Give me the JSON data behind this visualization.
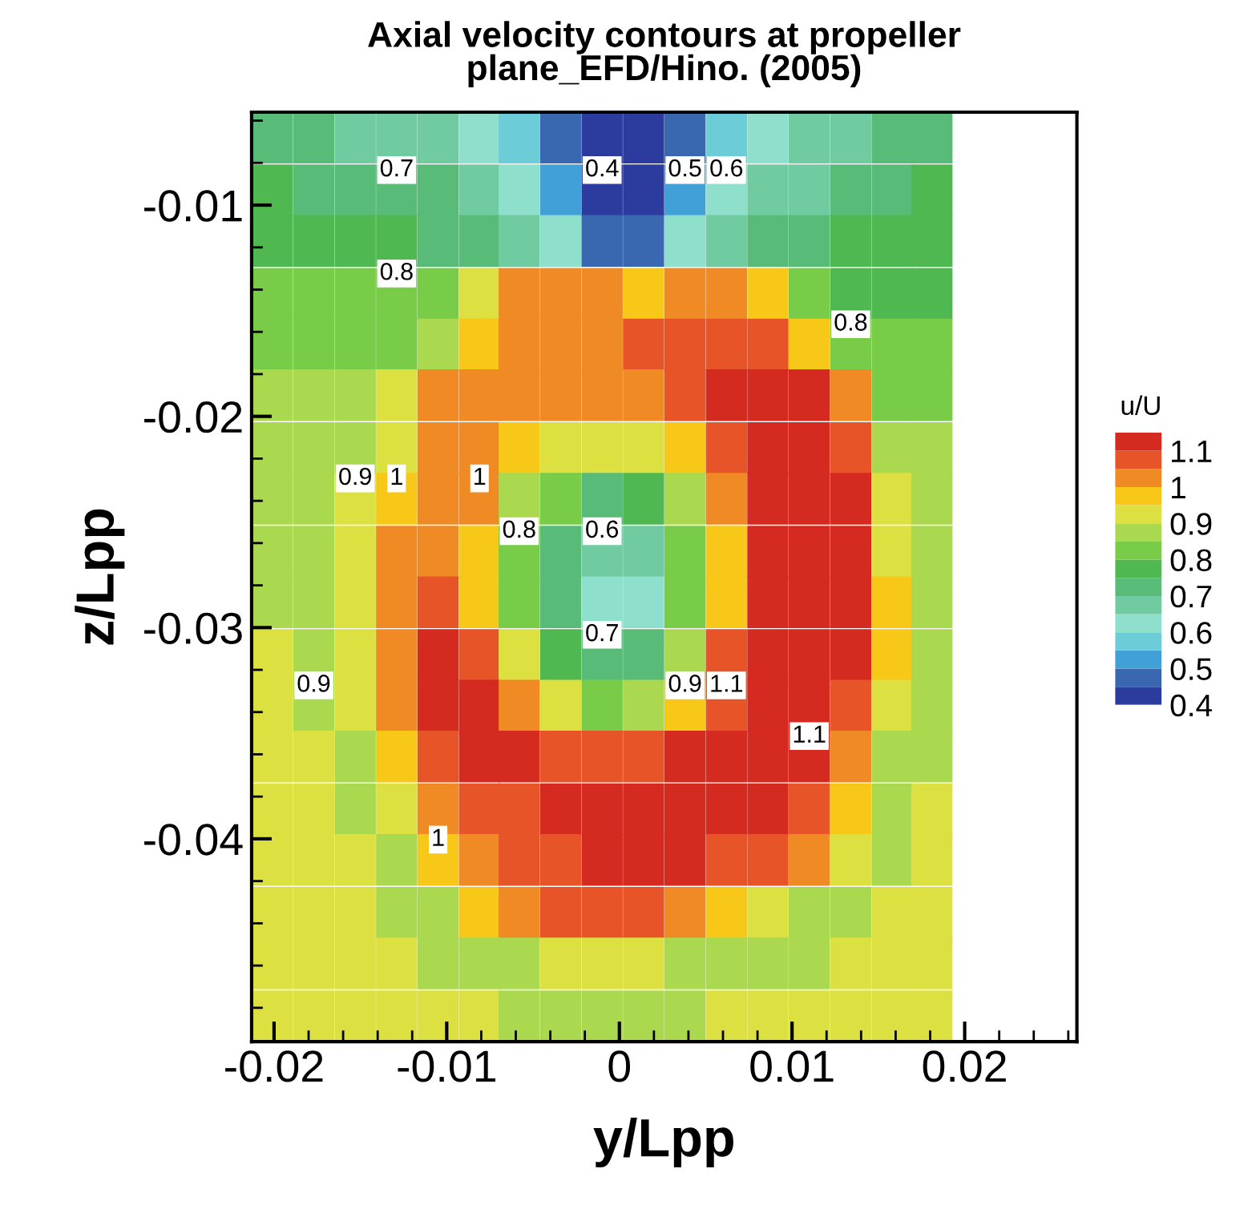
{
  "chart_data": {
    "type": "scatter",
    "title": "Axial velocity contours at propeller\nplane_EFD/Hino. (2005)",
    "xlabel": "y/Lpp",
    "ylabel": "z/Lpp",
    "clabel": "u/U",
    "marker": "square",
    "xlim": [
      -0.0213,
      0.0265
    ],
    "ylim": [
      -0.0496,
      -0.0056
    ],
    "xticks": [
      -0.02,
      -0.01,
      0,
      0.01,
      0.02,
      {
        "value": -0.018,
        "label": null
      },
      {
        "value": -0.016,
        "label": null
      },
      {
        "value": -0.014,
        "label": null
      },
      {
        "value": -0.012,
        "label": null
      },
      {
        "value": -0.008,
        "label": null
      },
      {
        "value": -0.006,
        "label": null
      },
      {
        "value": -0.004,
        "label": null
      },
      {
        "value": -0.002,
        "label": null
      },
      {
        "value": 0.002,
        "label": null
      },
      {
        "value": 0.004,
        "label": null
      },
      {
        "value": 0.006,
        "label": null
      },
      {
        "value": 0.008,
        "label": null
      },
      {
        "value": 0.012,
        "label": null
      },
      {
        "value": 0.014,
        "label": null
      },
      {
        "value": 0.016,
        "label": null
      },
      {
        "value": 0.018,
        "label": null
      },
      {
        "value": 0.022,
        "label": null
      },
      {
        "value": 0.024,
        "label": null
      },
      {
        "value": 0.026,
        "label": null
      }
    ],
    "yticks": [
      -0.01,
      -0.02,
      -0.03,
      -0.04,
      {
        "value": -0.006,
        "label": null
      },
      {
        "value": -0.008,
        "label": null
      },
      {
        "value": -0.012,
        "label": null
      },
      {
        "value": -0.014,
        "label": null
      },
      {
        "value": -0.016,
        "label": null
      },
      {
        "value": -0.018,
        "label": null
      },
      {
        "value": -0.022,
        "label": null
      },
      {
        "value": -0.024,
        "label": null
      },
      {
        "value": -0.026,
        "label": null
      },
      {
        "value": -0.028,
        "label": null
      },
      {
        "value": -0.032,
        "label": null
      },
      {
        "value": -0.034,
        "label": null
      },
      {
        "value": -0.036,
        "label": null
      },
      {
        "value": -0.038,
        "label": null
      },
      {
        "value": -0.042,
        "label": null
      },
      {
        "value": -0.044,
        "label": null
      },
      {
        "value": -0.046,
        "label": null
      },
      {
        "value": -0.048,
        "label": null
      }
    ],
    "clim": [
      0.4,
      1.15
    ],
    "cticks": [
      0.4,
      0.5,
      0.6,
      0.7,
      0.8,
      0.9,
      1,
      1.1
    ],
    "x": [
      -0.0201,
      -0.0177,
      -0.0153,
      -0.0129,
      -0.0105,
      -0.0081,
      -0.0058,
      -0.0034,
      -0.001,
      0.0014,
      0.0038,
      0.0062,
      0.0086,
      0.011,
      0.0134,
      0.0158,
      0.0181,
      -0.0201,
      -0.0177,
      -0.0153,
      -0.0129,
      -0.0105,
      -0.0081,
      -0.0058,
      -0.0034,
      -0.001,
      0.0014,
      0.0038,
      0.0062,
      0.0086,
      0.011,
      0.0134,
      0.0158,
      0.0181,
      -0.0201,
      -0.0177,
      -0.0153,
      -0.0129,
      -0.0105,
      -0.0081,
      -0.0058,
      -0.0034,
      -0.001,
      0.0014,
      0.0038,
      0.0062,
      0.0086,
      0.011,
      0.0134,
      0.0158,
      0.0181,
      -0.0201,
      -0.0177,
      -0.0153,
      -0.0129,
      -0.0105,
      -0.0081,
      -0.0058,
      -0.0034,
      -0.001,
      0.0014,
      0.0038,
      0.0062,
      0.0086,
      0.011,
      0.0134,
      0.0158,
      0.0181,
      -0.0201,
      -0.0177,
      -0.0153,
      -0.0129,
      -0.0105,
      -0.0081,
      -0.0058,
      -0.0034,
      -0.001,
      0.0014,
      0.0038,
      0.0062,
      0.0086,
      0.011,
      0.0134,
      0.0158,
      0.0181,
      -0.0201,
      -0.0177,
      -0.0153,
      -0.0129,
      -0.0105,
      -0.0081,
      -0.0058,
      -0.0034,
      -0.001,
      0.0014,
      0.0038,
      0.0062,
      0.0086,
      0.011,
      0.0134,
      0.0158,
      0.0181,
      -0.0201,
      -0.0177,
      -0.0153,
      -0.0129,
      -0.0105,
      -0.0081,
      -0.0058,
      -0.0034,
      -0.001,
      0.0014,
      0.0038,
      0.0062,
      0.0086,
      0.011,
      0.0134,
      0.0158,
      0.0181,
      -0.0201,
      -0.0177,
      -0.0153,
      -0.0129,
      -0.0105,
      -0.0081,
      -0.0058,
      -0.0034,
      -0.001,
      0.0014,
      0.0038,
      0.0062,
      0.0086,
      0.011,
      0.0134,
      0.0158,
      0.0181,
      -0.0201,
      -0.0177,
      -0.0153,
      -0.0129,
      -0.0105,
      -0.0081,
      -0.0058,
      -0.0034,
      -0.001,
      0.0014,
      0.0038,
      0.0062,
      0.0086,
      0.011,
      0.0134,
      0.0158,
      0.0181,
      -0.0201,
      -0.0177,
      -0.0153,
      -0.0129,
      -0.0105,
      -0.0081,
      -0.0058,
      -0.0034,
      -0.001,
      0.0014,
      0.0038,
      0.0062,
      0.0086,
      0.011,
      0.0134,
      0.0158,
      0.0181,
      -0.0201,
      -0.0177,
      -0.0153,
      -0.0129,
      -0.0105,
      -0.0081,
      -0.0058,
      -0.0034,
      -0.001,
      0.0014,
      0.0038,
      0.0062,
      0.0086,
      0.011,
      0.0134,
      0.0158,
      0.0181,
      -0.0201,
      -0.0177,
      -0.0153,
      -0.0129,
      -0.0105,
      -0.0081,
      -0.0058,
      -0.0034,
      -0.001,
      0.0014,
      0.0038,
      0.0062,
      0.0086,
      0.011,
      0.0134,
      0.0158,
      0.0181,
      -0.0201,
      -0.0177,
      -0.0153,
      -0.0129,
      -0.0105,
      -0.0081,
      -0.0058,
      -0.0034,
      -0.001,
      0.0014,
      0.0038,
      0.0062,
      0.0086,
      0.011,
      0.0134,
      0.0158,
      0.0181,
      -0.0201,
      -0.0177,
      -0.0153,
      -0.0129,
      -0.0105,
      -0.0081,
      -0.0058,
      -0.0034,
      -0.001,
      0.0014,
      0.0038,
      0.0062,
      0.0086,
      0.011,
      0.0134,
      0.0158,
      0.0181,
      -0.0201,
      -0.0177,
      -0.0153,
      -0.0129,
      -0.0105,
      -0.0081,
      -0.0058,
      -0.0034,
      -0.001,
      0.0014,
      0.0038,
      0.0062,
      0.0086,
      0.011,
      0.0134,
      0.0158,
      0.0181,
      -0.0201,
      -0.0177,
      -0.0153,
      -0.0129,
      -0.0105,
      -0.0081,
      -0.0058,
      -0.0034,
      -0.001,
      0.0014,
      0.0038,
      0.0062,
      0.0086,
      0.011,
      0.0134,
      0.0158,
      0.0181,
      -0.0201,
      -0.0177,
      -0.0153,
      -0.0129,
      -0.0105,
      -0.0081,
      -0.0058,
      -0.0034,
      -0.001,
      0.0014,
      0.0038,
      0.0062,
      0.0086,
      0.011,
      0.0134,
      0.0158,
      0.0181,
      -0.0201,
      -0.0177,
      -0.0153,
      -0.0129,
      -0.0105,
      -0.0081,
      -0.0058,
      -0.0034,
      -0.001,
      0.0014,
      0.0038,
      0.0062,
      0.0086,
      0.011,
      0.0134,
      0.0158,
      0.0181
    ],
    "values": [
      -0.0068,
      -0.0068,
      -0.0068,
      -0.0068,
      -0.0068,
      -0.0068,
      -0.0068,
      -0.0068,
      -0.0068,
      -0.0068,
      -0.0068,
      -0.0068,
      -0.0068,
      -0.0068,
      -0.0068,
      -0.0068,
      -0.0068,
      -0.0093,
      -0.0093,
      -0.0093,
      -0.0093,
      -0.0093,
      -0.0093,
      -0.0093,
      -0.0093,
      -0.0093,
      -0.0093,
      -0.0093,
      -0.0093,
      -0.0093,
      -0.0093,
      -0.0093,
      -0.0093,
      -0.0093,
      -0.0117,
      -0.0117,
      -0.0117,
      -0.0117,
      -0.0117,
      -0.0117,
      -0.0117,
      -0.0117,
      -0.0117,
      -0.0117,
      -0.0117,
      -0.0117,
      -0.0117,
      -0.0117,
      -0.0117,
      -0.0117,
      -0.0117,
      -0.0142,
      -0.0142,
      -0.0142,
      -0.0142,
      -0.0142,
      -0.0142,
      -0.0142,
      -0.0142,
      -0.0142,
      -0.0142,
      -0.0142,
      -0.0142,
      -0.0142,
      -0.0142,
      -0.0142,
      -0.0142,
      -0.0142,
      -0.0166,
      -0.0166,
      -0.0166,
      -0.0166,
      -0.0166,
      -0.0166,
      -0.0166,
      -0.0166,
      -0.0166,
      -0.0166,
      -0.0166,
      -0.0166,
      -0.0166,
      -0.0166,
      -0.0166,
      -0.0166,
      -0.0166,
      -0.019,
      -0.019,
      -0.019,
      -0.019,
      -0.019,
      -0.019,
      -0.019,
      -0.019,
      -0.019,
      -0.019,
      -0.019,
      -0.019,
      -0.019,
      -0.019,
      -0.019,
      -0.019,
      -0.019,
      -0.0215,
      -0.0215,
      -0.0215,
      -0.0215,
      -0.0215,
      -0.0215,
      -0.0215,
      -0.0215,
      -0.0215,
      -0.0215,
      -0.0215,
      -0.0215,
      -0.0215,
      -0.0215,
      -0.0215,
      -0.0215,
      -0.0215,
      -0.0239,
      -0.0239,
      -0.0239,
      -0.0239,
      -0.0239,
      -0.0239,
      -0.0239,
      -0.0239,
      -0.0239,
      -0.0239,
      -0.0239,
      -0.0239,
      -0.0239,
      -0.0239,
      -0.0239,
      -0.0239,
      -0.0239,
      -0.0264,
      -0.0264,
      -0.0264,
      -0.0264,
      -0.0264,
      -0.0264,
      -0.0264,
      -0.0264,
      -0.0264,
      -0.0264,
      -0.0264,
      -0.0264,
      -0.0264,
      -0.0264,
      -0.0264,
      -0.0264,
      -0.0264,
      -0.0288,
      -0.0288,
      -0.0288,
      -0.0288,
      -0.0288,
      -0.0288,
      -0.0288,
      -0.0288,
      -0.0288,
      -0.0288,
      -0.0288,
      -0.0288,
      -0.0288,
      -0.0288,
      -0.0288,
      -0.0288,
      -0.0288,
      -0.0313,
      -0.0313,
      -0.0313,
      -0.0313,
      -0.0313,
      -0.0313,
      -0.0313,
      -0.0313,
      -0.0313,
      -0.0313,
      -0.0313,
      -0.0313,
      -0.0313,
      -0.0313,
      -0.0313,
      -0.0313,
      -0.0313,
      -0.0337,
      -0.0337,
      -0.0337,
      -0.0337,
      -0.0337,
      -0.0337,
      -0.0337,
      -0.0337,
      -0.0337,
      -0.0337,
      -0.0337,
      -0.0337,
      -0.0337,
      -0.0337,
      -0.0337,
      -0.0337,
      -0.0337,
      -0.0361,
      -0.0361,
      -0.0361,
      -0.0361,
      -0.0361,
      -0.0361,
      -0.0361,
      -0.0361,
      -0.0361,
      -0.0361,
      -0.0361,
      -0.0361,
      -0.0361,
      -0.0361,
      -0.0361,
      -0.0361,
      -0.0361,
      -0.0386,
      -0.0386,
      -0.0386,
      -0.0386,
      -0.0386,
      -0.0386,
      -0.0386,
      -0.0386,
      -0.0386,
      -0.0386,
      -0.0386,
      -0.0386,
      -0.0386,
      -0.0386,
      -0.0386,
      -0.0386,
      -0.0386,
      -0.041,
      -0.041,
      -0.041,
      -0.041,
      -0.041,
      -0.041,
      -0.041,
      -0.041,
      -0.041,
      -0.041,
      -0.041,
      -0.041,
      -0.041,
      -0.041,
      -0.041,
      -0.041,
      -0.041,
      -0.0435,
      -0.0435,
      -0.0435,
      -0.0435,
      -0.0435,
      -0.0435,
      -0.0435,
      -0.0435,
      -0.0435,
      -0.0435,
      -0.0435,
      -0.0435,
      -0.0435,
      -0.0435,
      -0.0435,
      -0.0435,
      -0.0435,
      -0.0459,
      -0.0459,
      -0.0459,
      -0.0459,
      -0.0459,
      -0.0459,
      -0.0459,
      -0.0459,
      -0.0459,
      -0.0459,
      -0.0459,
      -0.0459,
      -0.0459,
      -0.0459,
      -0.0459,
      -0.0459,
      -0.0459,
      -0.0484,
      -0.0484,
      -0.0484,
      -0.0484,
      -0.0484,
      -0.0484,
      -0.0484,
      -0.0484,
      -0.0484,
      -0.0484,
      -0.0484,
      -0.0484,
      -0.0484,
      -0.0484,
      -0.0484,
      -0.0484,
      -0.0484
    ],
    "cvalues": [
      0.72,
      0.72,
      0.68,
      0.67,
      0.66,
      0.62,
      0.57,
      0.47,
      0.42,
      0.42,
      0.47,
      0.57,
      0.62,
      0.66,
      0.68,
      0.72,
      0.72,
      0.77,
      0.74,
      0.72,
      0.71,
      0.7,
      0.67,
      0.6,
      0.52,
      0.42,
      0.42,
      0.52,
      0.6,
      0.66,
      0.69,
      0.72,
      0.74,
      0.76,
      0.79,
      0.78,
      0.77,
      0.76,
      0.74,
      0.72,
      0.68,
      0.6,
      0.47,
      0.47,
      0.6,
      0.68,
      0.72,
      0.74,
      0.76,
      0.77,
      0.78,
      0.82,
      0.81,
      0.8,
      0.8,
      0.82,
      0.92,
      1.02,
      1.02,
      1.02,
      0.97,
      1.02,
      1.02,
      0.97,
      0.82,
      0.79,
      0.78,
      0.78,
      0.84,
      0.83,
      0.82,
      0.82,
      0.87,
      0.97,
      1.02,
      1.02,
      1.02,
      1.07,
      1.07,
      1.07,
      1.07,
      0.97,
      0.82,
      0.8,
      0.8,
      0.87,
      0.87,
      0.87,
      0.92,
      1.02,
      1.02,
      1.02,
      1.02,
      1.02,
      1.02,
      1.07,
      1.12,
      1.12,
      1.12,
      1.02,
      0.84,
      0.82,
      0.87,
      0.87,
      0.87,
      0.92,
      1.02,
      1.02,
      0.97,
      0.92,
      0.92,
      0.92,
      0.97,
      1.07,
      1.12,
      1.12,
      1.07,
      0.87,
      0.86,
      0.87,
      0.87,
      0.92,
      0.97,
      1.02,
      1.02,
      0.87,
      0.8,
      0.72,
      0.77,
      0.87,
      1.02,
      1.12,
      1.12,
      1.12,
      0.92,
      0.87,
      0.87,
      0.87,
      0.92,
      1.02,
      1.02,
      0.97,
      0.82,
      0.72,
      0.65,
      0.67,
      0.82,
      0.97,
      1.12,
      1.12,
      1.12,
      0.92,
      0.87,
      0.87,
      0.87,
      0.92,
      1.02,
      1.07,
      0.97,
      0.82,
      0.72,
      0.62,
      0.62,
      0.8,
      0.97,
      1.12,
      1.12,
      1.12,
      0.97,
      0.87,
      0.92,
      0.87,
      0.92,
      1.02,
      1.12,
      1.07,
      0.92,
      0.77,
      0.72,
      0.72,
      0.87,
      1.07,
      1.12,
      1.12,
      1.12,
      0.97,
      0.87,
      0.92,
      0.87,
      0.92,
      1.02,
      1.12,
      1.12,
      1.02,
      0.92,
      0.82,
      0.87,
      0.97,
      1.07,
      1.12,
      1.12,
      1.07,
      0.92,
      0.87,
      0.92,
      0.92,
      0.87,
      0.97,
      1.07,
      1.12,
      1.12,
      1.07,
      1.07,
      1.07,
      1.12,
      1.12,
      1.12,
      1.12,
      1.02,
      0.87,
      0.87,
      0.92,
      0.92,
      0.87,
      0.92,
      1.02,
      1.07,
      1.07,
      1.12,
      1.12,
      1.12,
      1.12,
      1.12,
      1.12,
      1.07,
      0.97,
      0.87,
      0.92,
      0.92,
      0.92,
      0.92,
      0.87,
      0.97,
      1.02,
      1.07,
      1.07,
      1.12,
      1.12,
      1.12,
      1.07,
      1.07,
      1.02,
      0.92,
      0.87,
      0.92,
      0.92,
      0.92,
      0.92,
      0.87,
      0.87,
      0.97,
      1.02,
      1.07,
      1.07,
      1.07,
      1.02,
      0.97,
      0.92,
      0.87,
      0.87,
      0.92,
      0.92,
      0.92,
      0.92,
      0.92,
      0.92,
      0.87,
      0.87,
      0.87,
      0.92,
      0.92,
      0.92,
      0.87,
      0.87,
      0.87,
      0.87,
      0.92,
      0.92,
      0.92,
      0.92,
      0.92,
      0.92,
      0.92,
      0.92,
      0.92,
      0.87,
      0.87,
      0.87,
      0.87,
      0.87,
      0.92,
      0.92,
      0.92,
      0.92,
      0.92,
      0.92
    ],
    "annotations": [
      {
        "text": "0.7",
        "x": -0.0129,
        "y": -0.0093
      },
      {
        "text": "0.4",
        "x": -0.001,
        "y": -0.0093
      },
      {
        "text": "0.5",
        "x": 0.0038,
        "y": -0.0093
      },
      {
        "text": "0.6",
        "x": 0.0062,
        "y": -0.0093
      },
      {
        "text": "0.8",
        "x": -0.0129,
        "y": -0.0142
      },
      {
        "text": "0.8",
        "x": 0.0134,
        "y": -0.0166
      },
      {
        "text": "1",
        "x": -0.0129,
        "y": -0.0239
      },
      {
        "text": "0.9",
        "x": -0.0153,
        "y": -0.0239
      },
      {
        "text": "1",
        "x": -0.0081,
        "y": -0.0239
      },
      {
        "text": "0.8",
        "x": -0.0058,
        "y": -0.0264
      },
      {
        "text": "0.6",
        "x": -0.001,
        "y": -0.0264
      },
      {
        "text": "0.7",
        "x": -0.001,
        "y": -0.0313
      },
      {
        "text": "0.9",
        "x": 0.0038,
        "y": -0.0337
      },
      {
        "text": "1.1",
        "x": 0.0062,
        "y": -0.0337
      },
      {
        "text": "1.1",
        "x": 0.011,
        "y": -0.0361
      },
      {
        "text": "0.9",
        "x": -0.0177,
        "y": -0.0337
      },
      {
        "text": "1",
        "x": -0.0105,
        "y": -0.041
      }
    ]
  }
}
